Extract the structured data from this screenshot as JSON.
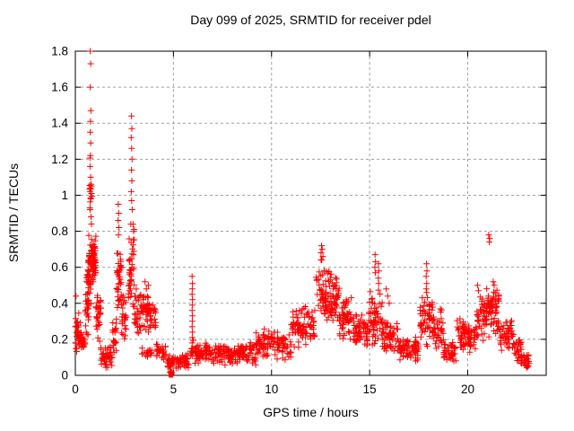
{
  "chart_data": {
    "type": "scatter",
    "title": "Day 099 of 2025, SRMTID for receiver pdel",
    "xlabel": "GPS time / hours",
    "ylabel": "SRMTID / TECUs",
    "xlim": [
      0,
      24
    ],
    "ylim": [
      0,
      1.8
    ],
    "xticks": [
      [
        0,
        "0"
      ],
      [
        5,
        "5"
      ],
      [
        10,
        "10"
      ],
      [
        15,
        "15"
      ],
      [
        20,
        "20"
      ]
    ],
    "yticks": [
      [
        0,
        "0"
      ],
      [
        0.2,
        "0.2"
      ],
      [
        0.4,
        "0.4"
      ],
      [
        0.6,
        "0.6"
      ],
      [
        0.8,
        "0.8"
      ],
      [
        1,
        "1"
      ],
      [
        1.2,
        "1.2"
      ],
      [
        1.4,
        "1.4"
      ],
      [
        1.6,
        "1.6"
      ],
      [
        1.8,
        "1.8"
      ]
    ],
    "grid": "dashed",
    "legend": "none",
    "marker": "plus",
    "marker_color": "#ff0000",
    "grid_color": "#a0a0a0",
    "axis_color": "#000000",
    "series": [
      {
        "name": "SRMTID",
        "seed": 42,
        "square_point": [
          4.87,
          0.0
        ],
        "peak_points": [
          [
            0.03,
            0.44
          ],
          [
            0.76,
            1.8
          ],
          [
            0.78,
            1.73
          ],
          [
            0.76,
            1.6
          ],
          [
            0.79,
            1.47
          ],
          [
            0.77,
            1.41
          ],
          [
            0.76,
            1.35
          ],
          [
            0.78,
            1.29
          ],
          [
            0.77,
            1.22
          ],
          [
            0.75,
            1.16
          ],
          [
            0.78,
            1.1
          ],
          [
            0.76,
            1.04
          ],
          [
            0.79,
            0.98
          ],
          [
            0.74,
            0.93
          ],
          [
            0.8,
            0.88
          ],
          [
            0.82,
            0.84
          ],
          [
            2.19,
            0.95
          ],
          [
            2.21,
            0.9
          ],
          [
            2.18,
            0.86
          ],
          [
            2.22,
            0.82
          ],
          [
            2.2,
            0.78
          ],
          [
            2.86,
            1.44
          ],
          [
            2.88,
            1.37
          ],
          [
            2.85,
            1.32
          ],
          [
            2.87,
            1.26
          ],
          [
            2.89,
            1.2
          ],
          [
            2.86,
            1.14
          ],
          [
            2.88,
            1.08
          ],
          [
            2.85,
            1.02
          ],
          [
            2.87,
            0.97
          ],
          [
            2.9,
            0.92
          ],
          [
            3.55,
            0.52
          ],
          [
            3.72,
            0.5
          ],
          [
            3.62,
            0.48
          ],
          [
            5.95,
            0.55
          ],
          [
            5.97,
            0.51
          ],
          [
            5.96,
            0.48
          ],
          [
            5.95,
            0.45
          ],
          [
            5.97,
            0.42
          ],
          [
            5.96,
            0.39
          ],
          [
            5.95,
            0.36
          ],
          [
            5.97,
            0.33
          ],
          [
            5.96,
            0.3
          ],
          [
            5.95,
            0.27
          ],
          [
            5.97,
            0.24
          ],
          [
            5.96,
            0.21
          ],
          [
            5.95,
            0.18
          ],
          [
            5.97,
            0.15
          ],
          [
            12.55,
            0.72
          ],
          [
            12.58,
            0.7
          ],
          [
            12.52,
            0.68
          ],
          [
            12.62,
            0.66
          ],
          [
            12.56,
            0.64
          ],
          [
            15.28,
            0.67
          ],
          [
            15.3,
            0.63
          ],
          [
            15.27,
            0.6
          ],
          [
            15.29,
            0.57
          ],
          [
            15.45,
            0.62
          ],
          [
            15.47,
            0.58
          ],
          [
            15.44,
            0.54
          ],
          [
            15.46,
            0.51
          ],
          [
            15.85,
            0.48
          ],
          [
            15.92,
            0.44
          ],
          [
            16.0,
            0.4
          ],
          [
            17.9,
            0.62
          ],
          [
            17.92,
            0.58
          ],
          [
            17.88,
            0.55
          ],
          [
            17.91,
            0.51
          ],
          [
            17.89,
            0.48
          ],
          [
            20.5,
            0.5
          ],
          [
            20.55,
            0.47
          ],
          [
            21.07,
            0.78
          ],
          [
            21.12,
            0.76
          ],
          [
            21.1,
            0.74
          ],
          [
            21.3,
            0.52
          ],
          [
            21.35,
            0.5
          ]
        ],
        "bands": [
          [
            0.0,
            0.25,
            30,
            0.1,
            0.36
          ],
          [
            0.25,
            0.5,
            25,
            0.1,
            0.28
          ],
          [
            0.5,
            0.7,
            30,
            0.2,
            0.62
          ],
          [
            0.62,
            0.95,
            55,
            0.35,
            0.8
          ],
          [
            0.72,
            0.85,
            12,
            0.8,
            1.25
          ],
          [
            0.85,
            1.05,
            40,
            0.5,
            0.78
          ],
          [
            1.05,
            1.3,
            30,
            0.18,
            0.5
          ],
          [
            1.3,
            1.9,
            45,
            0.03,
            0.17
          ],
          [
            1.9,
            2.1,
            20,
            0.08,
            0.35
          ],
          [
            2.1,
            2.35,
            40,
            0.28,
            0.75
          ],
          [
            2.35,
            2.65,
            25,
            0.15,
            0.45
          ],
          [
            2.7,
            3.0,
            45,
            0.3,
            0.9
          ],
          [
            3.0,
            3.25,
            25,
            0.18,
            0.5
          ],
          [
            3.25,
            3.7,
            40,
            0.24,
            0.5
          ],
          [
            3.7,
            4.1,
            30,
            0.22,
            0.46
          ],
          [
            3.4,
            3.9,
            18,
            0.09,
            0.16
          ],
          [
            4.1,
            4.6,
            25,
            0.07,
            0.2
          ],
          [
            4.6,
            5.8,
            70,
            0.03,
            0.13
          ],
          [
            4.82,
            4.92,
            8,
            0.0,
            0.03
          ],
          [
            5.85,
            6.1,
            12,
            0.09,
            0.2
          ],
          [
            6.1,
            7.2,
            70,
            0.06,
            0.18
          ],
          [
            7.2,
            9.2,
            120,
            0.05,
            0.19
          ],
          [
            9.2,
            11.0,
            110,
            0.08,
            0.26
          ],
          [
            11.0,
            12.25,
            85,
            0.13,
            0.4
          ],
          [
            12.25,
            13.05,
            70,
            0.28,
            0.66
          ],
          [
            13.05,
            13.45,
            40,
            0.28,
            0.56
          ],
          [
            13.45,
            14.1,
            55,
            0.18,
            0.45
          ],
          [
            14.1,
            14.95,
            60,
            0.12,
            0.35
          ],
          [
            14.95,
            15.65,
            60,
            0.15,
            0.5
          ],
          [
            15.65,
            16.45,
            55,
            0.1,
            0.32
          ],
          [
            16.45,
            17.5,
            65,
            0.07,
            0.22
          ],
          [
            17.55,
            18.25,
            60,
            0.15,
            0.47
          ],
          [
            18.25,
            18.75,
            35,
            0.13,
            0.38
          ],
          [
            18.75,
            19.45,
            45,
            0.07,
            0.2
          ],
          [
            19.45,
            20.05,
            45,
            0.12,
            0.32
          ],
          [
            20.05,
            20.45,
            30,
            0.1,
            0.28
          ],
          [
            20.45,
            20.95,
            40,
            0.17,
            0.48
          ],
          [
            20.95,
            21.65,
            65,
            0.2,
            0.5
          ],
          [
            21.65,
            22.35,
            50,
            0.12,
            0.35
          ],
          [
            22.35,
            22.75,
            30,
            0.06,
            0.22
          ],
          [
            22.75,
            23.15,
            28,
            0.03,
            0.13
          ]
        ]
      }
    ]
  }
}
